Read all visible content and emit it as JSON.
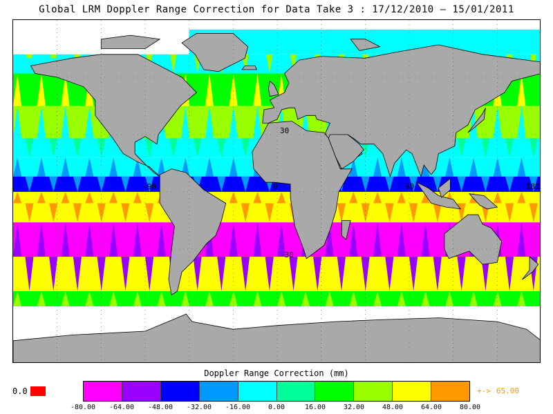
{
  "title": "Global LRM Doppler Range Correction for Data Take 3 : 17/12/2010 – 15/01/2011",
  "colorbar": {
    "label": "Doppler Range Correction (mm)",
    "ticks": [
      "-80.00",
      "-64.00",
      "-48.00",
      "-32.00",
      "-16.00",
      "0.00",
      "16.00",
      "32.00",
      "48.00",
      "64.00",
      "80.00"
    ],
    "colors": [
      "#ff00ff",
      "#9900ff",
      "#0000ff",
      "#0099ff",
      "#00ffff",
      "#00ff99",
      "#00ff00",
      "#99ff00",
      "#ffff00",
      "#ff9900"
    ],
    "nodata_label": "0.0",
    "nodata_color": "#ff0000",
    "overflow_arrow": "+->",
    "overflow_value": "65.00",
    "overflow_color": "#ff9900"
  },
  "map": {
    "grid_labels": {
      "lat_30": "30",
      "lat_minus30": "-30",
      "lon_minus90": "-90",
      "lon_0": "0",
      "lon_90": "90",
      "lon_180": "180"
    },
    "land_color": "#a9a9a9",
    "nodata_fill": "#ffffff"
  },
  "chart_data": {
    "type": "heatmap",
    "title": "Global LRM Doppler Range Correction for Data Take 3 : 17/12/2010 – 15/01/2011",
    "colorbar_label": "Doppler Range Correction (mm)",
    "value_range": [
      -80,
      80
    ],
    "color_levels": [
      -80,
      -64,
      -48,
      -32,
      -16,
      0,
      16,
      32,
      48,
      64,
      80
    ],
    "longitude_labels": [
      "-90",
      "0",
      "90",
      "180"
    ],
    "latitude_labels": [
      "30",
      "-30"
    ],
    "bands": [
      {
        "lat_range": [
          45,
          70
        ],
        "dominant_values": [
          16,
          48
        ]
      },
      {
        "lat_range": [
          20,
          45
        ],
        "dominant_values": [
          -16,
          32
        ]
      },
      {
        "lat_range": [
          0,
          20
        ],
        "dominant_values": [
          -16,
          0
        ]
      },
      {
        "lat_range": [
          -15,
          0
        ],
        "dominant_values": [
          -48,
          -32
        ]
      },
      {
        "lat_range": [
          -30,
          -15
        ],
        "dominant_values": [
          48,
          64
        ]
      },
      {
        "lat_range": [
          -60,
          -30
        ],
        "dominant_values": [
          -80,
          -48
        ]
      },
      {
        "lat_range": [
          -75,
          -60
        ],
        "dominant_values": [
          -48,
          32
        ]
      }
    ],
    "overflow_value": 65.0,
    "nodata_value": 0.0
  }
}
